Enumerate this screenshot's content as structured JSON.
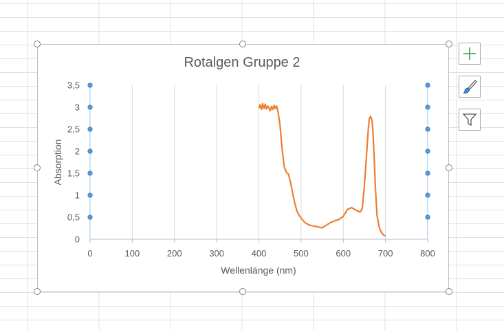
{
  "chart_data": {
    "type": "line",
    "title": "Rotalgen Gruppe 2",
    "xlabel": "Wellenlänge (nm)",
    "ylabel": "Absorption",
    "xlim": [
      0,
      800
    ],
    "ylim": [
      0,
      3.5
    ],
    "x_ticks": [
      0,
      100,
      200,
      300,
      400,
      500,
      600,
      700,
      800
    ],
    "x_tick_labels": [
      "0",
      "100",
      "200",
      "300",
      "400",
      "500",
      "600",
      "700",
      "800"
    ],
    "y_ticks": [
      0,
      0.5,
      1,
      1.5,
      2,
      2.5,
      3,
      3.5
    ],
    "y_tick_labels": [
      "0",
      "0,5",
      "1",
      "1,5",
      "2",
      "2,5",
      "3",
      "3,5"
    ],
    "grid": "vertical",
    "legend": "none",
    "series": [
      {
        "color": "#ed7d31",
        "x": [
          400,
          403,
          406,
          409,
          412,
          415,
          418,
          421,
          424,
          427,
          430,
          433,
          436,
          439,
          442,
          445,
          450,
          455,
          460,
          465,
          470,
          475,
          480,
          485,
          490,
          495,
          500,
          510,
          520,
          530,
          540,
          550,
          560,
          570,
          580,
          590,
          600,
          610,
          620,
          630,
          640,
          645,
          650,
          655,
          660,
          662,
          665,
          668,
          670,
          673,
          676,
          680,
          685,
          690,
          695,
          700
        ],
        "y": [
          2.98,
          3.06,
          2.95,
          3.08,
          2.97,
          3.07,
          2.96,
          3.03,
          2.98,
          2.92,
          3.02,
          2.95,
          3.04,
          2.97,
          3.03,
          2.92,
          2.6,
          2.05,
          1.65,
          1.52,
          1.48,
          1.3,
          1.05,
          0.82,
          0.65,
          0.55,
          0.48,
          0.37,
          0.32,
          0.3,
          0.28,
          0.26,
          0.32,
          0.38,
          0.42,
          0.45,
          0.52,
          0.68,
          0.72,
          0.66,
          0.62,
          0.7,
          1.2,
          1.9,
          2.6,
          2.75,
          2.79,
          2.7,
          2.5,
          1.9,
          1.2,
          0.55,
          0.28,
          0.16,
          0.1,
          0.07
        ]
      }
    ]
  },
  "side_buttons": {
    "elements": "chart-elements",
    "styles": "chart-styles",
    "filters": "chart-filters"
  }
}
